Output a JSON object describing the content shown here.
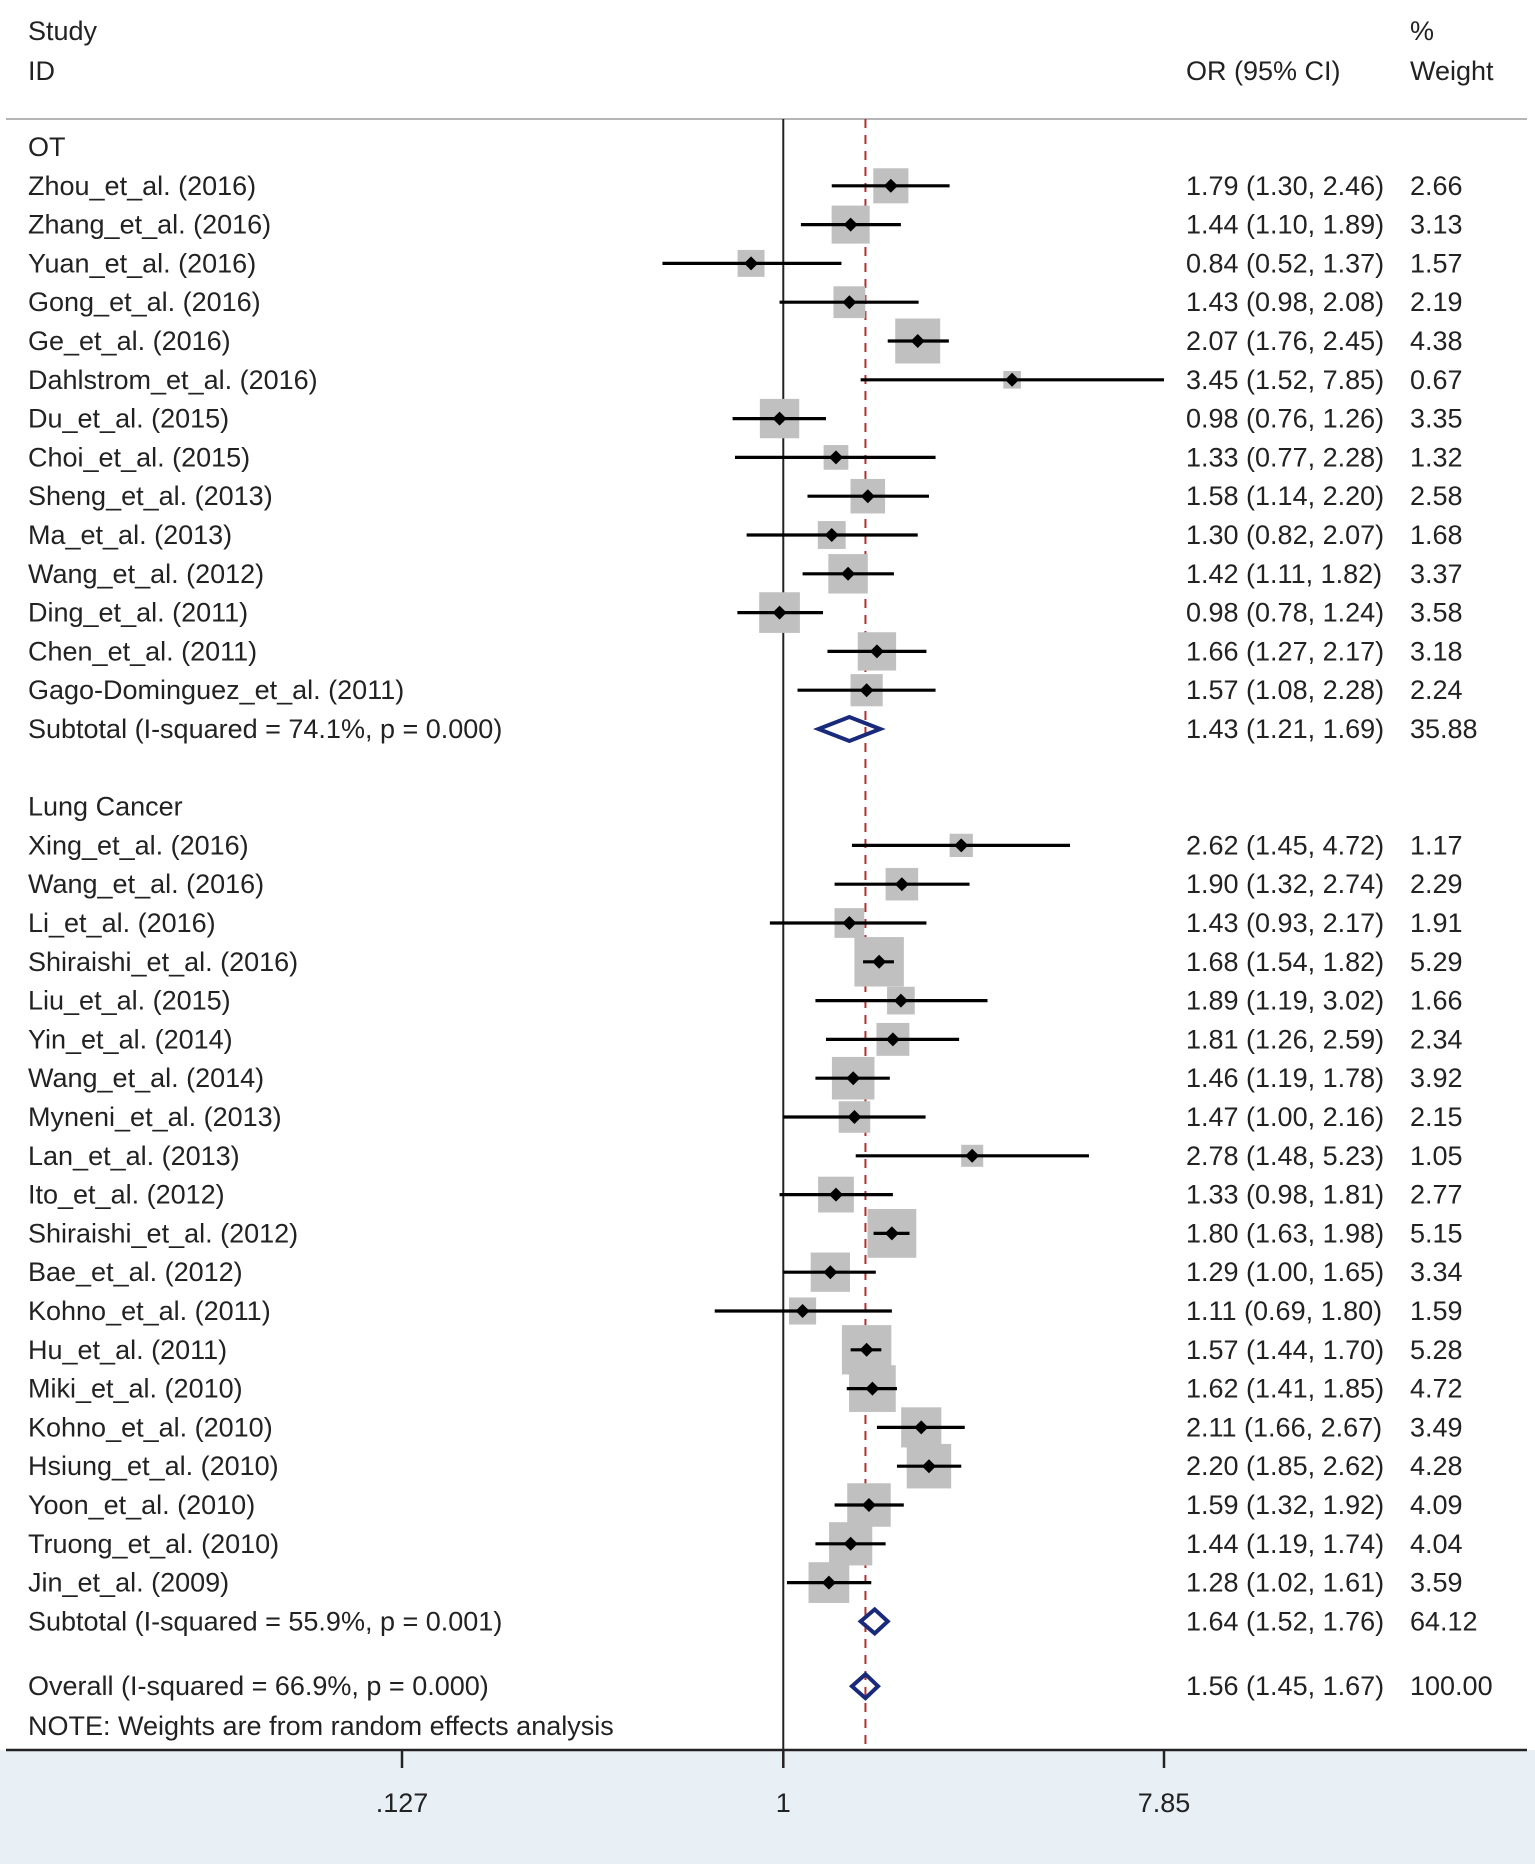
{
  "header": {
    "study_line1": "Study",
    "study_line2": "ID",
    "or_label": "OR (95% CI)",
    "weight_line1": "%",
    "weight_line2": "Weight"
  },
  "note": "NOTE: Weights are from random effects analysis",
  "colors": {
    "box": "#c0c0c0",
    "diamond": "#1a2a7a",
    "ref_line": "#b03030",
    "footer_bg": "#e8f0f6"
  },
  "chart_data": {
    "type": "forest",
    "scale": "log",
    "xlim": [
      0.127,
      7.85
    ],
    "xticks": [
      {
        "value": 0.127,
        "label": ".127"
      },
      {
        "value": 1,
        "label": "1"
      },
      {
        "value": 7.85,
        "label": "7.85"
      }
    ],
    "null_line": 1,
    "overall_line": 1.56,
    "groups": [
      {
        "name": "OT",
        "studies": [
          {
            "id": "Zhou_et_al. (2016)",
            "or": 1.79,
            "lo": 1.3,
            "hi": 2.46,
            "or_text": "1.79 (1.30, 2.46)",
            "weight": "2.66"
          },
          {
            "id": "Zhang_et_al. (2016)",
            "or": 1.44,
            "lo": 1.1,
            "hi": 1.89,
            "or_text": "1.44 (1.10, 1.89)",
            "weight": "3.13"
          },
          {
            "id": "Yuan_et_al. (2016)",
            "or": 0.84,
            "lo": 0.52,
            "hi": 1.37,
            "or_text": "0.84 (0.52, 1.37)",
            "weight": "1.57"
          },
          {
            "id": "Gong_et_al. (2016)",
            "or": 1.43,
            "lo": 0.98,
            "hi": 2.08,
            "or_text": "1.43 (0.98, 2.08)",
            "weight": "2.19"
          },
          {
            "id": "Ge_et_al. (2016)",
            "or": 2.07,
            "lo": 1.76,
            "hi": 2.45,
            "or_text": "2.07 (1.76, 2.45)",
            "weight": "4.38"
          },
          {
            "id": "Dahlstrom_et_al. (2016)",
            "or": 3.45,
            "lo": 1.52,
            "hi": 7.85,
            "or_text": "3.45 (1.52, 7.85)",
            "weight": "0.67"
          },
          {
            "id": "Du_et_al. (2015)",
            "or": 0.98,
            "lo": 0.76,
            "hi": 1.26,
            "or_text": "0.98 (0.76, 1.26)",
            "weight": "3.35"
          },
          {
            "id": "Choi_et_al. (2015)",
            "or": 1.33,
            "lo": 0.77,
            "hi": 2.28,
            "or_text": "1.33 (0.77, 2.28)",
            "weight": "1.32"
          },
          {
            "id": "Sheng_et_al. (2013)",
            "or": 1.58,
            "lo": 1.14,
            "hi": 2.2,
            "or_text": "1.58 (1.14, 2.20)",
            "weight": "2.58"
          },
          {
            "id": "Ma_et_al. (2013)",
            "or": 1.3,
            "lo": 0.82,
            "hi": 2.07,
            "or_text": "1.30 (0.82, 2.07)",
            "weight": "1.68"
          },
          {
            "id": "Wang_et_al. (2012)",
            "or": 1.42,
            "lo": 1.11,
            "hi": 1.82,
            "or_text": "1.42 (1.11, 1.82)",
            "weight": "3.37"
          },
          {
            "id": "Ding_et_al. (2011)",
            "or": 0.98,
            "lo": 0.78,
            "hi": 1.24,
            "or_text": "0.98 (0.78, 1.24)",
            "weight": "3.58"
          },
          {
            "id": "Chen_et_al. (2011)",
            "or": 1.66,
            "lo": 1.27,
            "hi": 2.17,
            "or_text": "1.66 (1.27, 2.17)",
            "weight": "3.18"
          },
          {
            "id": "Gago-Dominguez_et_al. (2011)",
            "or": 1.57,
            "lo": 1.08,
            "hi": 2.28,
            "or_text": "1.57 (1.08, 2.28)",
            "weight": "2.24"
          }
        ],
        "subtotal": {
          "label": "Subtotal  (I-squared = 74.1%, p = 0.000)",
          "or": 1.43,
          "lo": 1.21,
          "hi": 1.69,
          "or_text": "1.43 (1.21, 1.69)",
          "weight": "35.88"
        }
      },
      {
        "name": "Lung Cancer",
        "studies": [
          {
            "id": "Xing_et_al. (2016)",
            "or": 2.62,
            "lo": 1.45,
            "hi": 4.72,
            "or_text": "2.62 (1.45, 4.72)",
            "weight": "1.17"
          },
          {
            "id": "Wang_et_al. (2016)",
            "or": 1.9,
            "lo": 1.32,
            "hi": 2.74,
            "or_text": "1.90 (1.32, 2.74)",
            "weight": "2.29"
          },
          {
            "id": "Li_et_al. (2016)",
            "or": 1.43,
            "lo": 0.93,
            "hi": 2.17,
            "or_text": "1.43 (0.93, 2.17)",
            "weight": "1.91"
          },
          {
            "id": "Shiraishi_et_al. (2016)",
            "or": 1.68,
            "lo": 1.54,
            "hi": 1.82,
            "or_text": "1.68 (1.54, 1.82)",
            "weight": "5.29"
          },
          {
            "id": "Liu_et_al. (2015)",
            "or": 1.89,
            "lo": 1.19,
            "hi": 3.02,
            "or_text": "1.89 (1.19, 3.02)",
            "weight": "1.66"
          },
          {
            "id": "Yin_et_al. (2014)",
            "or": 1.81,
            "lo": 1.26,
            "hi": 2.59,
            "or_text": "1.81 (1.26, 2.59)",
            "weight": "2.34"
          },
          {
            "id": "Wang_et_al. (2014)",
            "or": 1.46,
            "lo": 1.19,
            "hi": 1.78,
            "or_text": "1.46 (1.19, 1.78)",
            "weight": "3.92"
          },
          {
            "id": "Myneni_et_al. (2013)",
            "or": 1.47,
            "lo": 1.0,
            "hi": 2.16,
            "or_text": "1.47 (1.00, 2.16)",
            "weight": "2.15"
          },
          {
            "id": "Lan_et_al. (2013)",
            "or": 2.78,
            "lo": 1.48,
            "hi": 5.23,
            "or_text": "2.78 (1.48, 5.23)",
            "weight": "1.05"
          },
          {
            "id": "Ito_et_al. (2012)",
            "or": 1.33,
            "lo": 0.98,
            "hi": 1.81,
            "or_text": "1.33 (0.98, 1.81)",
            "weight": "2.77"
          },
          {
            "id": "Shiraishi_et_al. (2012)",
            "or": 1.8,
            "lo": 1.63,
            "hi": 1.98,
            "or_text": "1.80 (1.63, 1.98)",
            "weight": "5.15"
          },
          {
            "id": "Bae_et_al. (2012)",
            "or": 1.29,
            "lo": 1.0,
            "hi": 1.65,
            "or_text": "1.29 (1.00, 1.65)",
            "weight": "3.34"
          },
          {
            "id": "Kohno_et_al. (2011)",
            "or": 1.11,
            "lo": 0.69,
            "hi": 1.8,
            "or_text": "1.11 (0.69, 1.80)",
            "weight": "1.59"
          },
          {
            "id": "Hu_et_al. (2011)",
            "or": 1.57,
            "lo": 1.44,
            "hi": 1.7,
            "or_text": "1.57 (1.44, 1.70)",
            "weight": "5.28"
          },
          {
            "id": "Miki_et_al. (2010)",
            "or": 1.62,
            "lo": 1.41,
            "hi": 1.85,
            "or_text": "1.62 (1.41, 1.85)",
            "weight": "4.72"
          },
          {
            "id": "Kohno_et_al. (2010)",
            "or": 2.11,
            "lo": 1.66,
            "hi": 2.67,
            "or_text": "2.11 (1.66, 2.67)",
            "weight": "3.49"
          },
          {
            "id": "Hsiung_et_al. (2010)",
            "or": 2.2,
            "lo": 1.85,
            "hi": 2.62,
            "or_text": "2.20 (1.85, 2.62)",
            "weight": "4.28"
          },
          {
            "id": "Yoon_et_al. (2010)",
            "or": 1.59,
            "lo": 1.32,
            "hi": 1.92,
            "or_text": "1.59 (1.32, 1.92)",
            "weight": "4.09"
          },
          {
            "id": "Truong_et_al. (2010)",
            "or": 1.44,
            "lo": 1.19,
            "hi": 1.74,
            "or_text": "1.44 (1.19, 1.74)",
            "weight": "4.04"
          },
          {
            "id": "Jin_et_al. (2009)",
            "or": 1.28,
            "lo": 1.02,
            "hi": 1.61,
            "or_text": "1.28 (1.02, 1.61)",
            "weight": "3.59"
          }
        ],
        "subtotal": {
          "label": "Subtotal  (I-squared = 55.9%, p = 0.001)",
          "or": 1.64,
          "lo": 1.52,
          "hi": 1.76,
          "or_text": "1.64 (1.52, 1.76)",
          "weight": "64.12"
        }
      }
    ],
    "overall": {
      "label": "Overall  (I-squared = 66.9%, p = 0.000)",
      "or": 1.56,
      "lo": 1.45,
      "hi": 1.67,
      "or_text": "1.56 (1.45, 1.67)",
      "weight": "100.00"
    }
  }
}
